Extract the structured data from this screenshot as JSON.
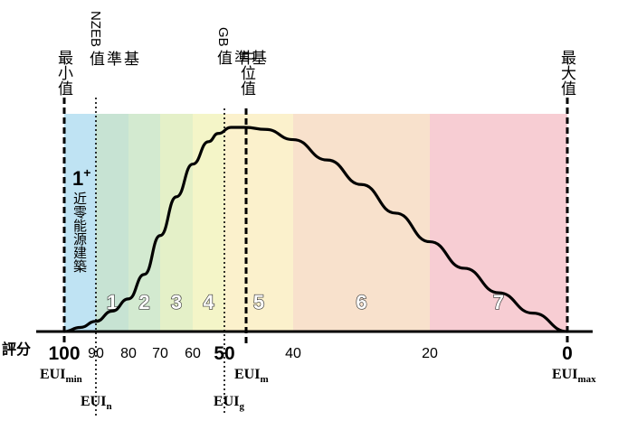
{
  "labels": {
    "min_value": "最小值",
    "nzeb_prefix": "NZEB",
    "nzeb_suffix": "基準值",
    "gb_prefix": "GB",
    "gb_suffix": "基準值",
    "median": "中位值",
    "max_value": "最大值",
    "score": "評分",
    "near_zero_grade": "1",
    "near_zero_sup": "+",
    "near_zero_text": "近零能源建築"
  },
  "eui": {
    "base": "EUI",
    "min_sub": "min",
    "n_sub": "n",
    "g_sub": "g",
    "m_sub": "m",
    "max_sub": "max"
  },
  "zones": [
    {
      "label": "1+",
      "from": 100,
      "to": 90,
      "color": "#bfe3f3"
    },
    {
      "label": "1",
      "from": 90,
      "to": 80,
      "color": "#c7e3d3"
    },
    {
      "label": "2",
      "from": 80,
      "to": 70,
      "color": "#d3ead0"
    },
    {
      "label": "3",
      "from": 70,
      "to": 60,
      "color": "#e4f0c8"
    },
    {
      "label": "4",
      "from": 60,
      "to": 50,
      "color": "#f4f5c8"
    },
    {
      "label": "5",
      "from": 50,
      "to": 40,
      "color": "#fbf1cc"
    },
    {
      "label": "6",
      "from": 40,
      "to": 20,
      "color": "#f8e1cc"
    },
    {
      "label": "7",
      "from": 20,
      "to": 0,
      "color": "#f7cdd3"
    }
  ],
  "chart_data": {
    "type": "line",
    "x_ticks": [
      "100",
      "90",
      "80",
      "70",
      "60",
      "50",
      "40",
      "20",
      "0"
    ],
    "x_tick_values": [
      100,
      90,
      80,
      70,
      60,
      50,
      40,
      20,
      0
    ],
    "bold_ticks": [
      "100",
      "50",
      "0"
    ],
    "xlim": [
      100,
      0
    ],
    "marker_lines": [
      {
        "name": "min",
        "score": 100,
        "style": "dashed"
      },
      {
        "name": "nzeb",
        "score": 90,
        "style": "dotted"
      },
      {
        "name": "gb",
        "score": 50,
        "style": "dotted"
      },
      {
        "name": "median",
        "score": 47,
        "style": "dashed"
      },
      {
        "name": "max",
        "score": 0,
        "style": "dashed"
      }
    ],
    "distribution_curve": {
      "x": [
        100,
        95,
        90,
        85,
        80,
        75,
        70,
        65,
        60,
        55,
        52,
        49,
        47,
        44,
        40,
        35,
        30,
        25,
        20,
        15,
        10,
        5,
        0
      ],
      "y": [
        0,
        0.02,
        0.05,
        0.1,
        0.16,
        0.28,
        0.47,
        0.66,
        0.82,
        0.93,
        0.97,
        1.0,
        1.0,
        0.99,
        0.94,
        0.84,
        0.72,
        0.58,
        0.44,
        0.31,
        0.19,
        0.09,
        0
      ]
    }
  }
}
